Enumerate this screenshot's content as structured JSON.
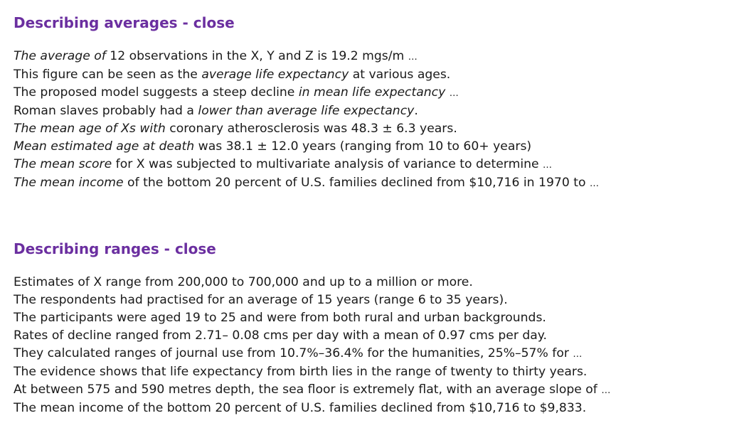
{
  "averages": {
    "heading": "Describing averages - close",
    "lines": [
      [
        {
          "t": "The average of",
          "i": true
        },
        {
          "t": " 12 observations in the X, Y and Z is 19.2 mgs/m "
        },
        {
          "t": "…",
          "e": true
        }
      ],
      [
        {
          "t": "This figure can be seen as the "
        },
        {
          "t": "average life expectancy",
          "i": true
        },
        {
          "t": " at various ages."
        }
      ],
      [
        {
          "t": "The proposed model suggests a steep decline "
        },
        {
          "t": "in mean life expectancy",
          "i": true
        },
        {
          "t": " "
        },
        {
          "t": "…",
          "e": true
        }
      ],
      [
        {
          "t": "Roman slaves probably had a "
        },
        {
          "t": "lower than average life expectancy",
          "i": true
        },
        {
          "t": "."
        }
      ],
      [
        {
          "t": "The mean age of Xs with",
          "i": true
        },
        {
          "t": " coronary atherosclerosis was 48.3 ± 6.3 years."
        }
      ],
      [
        {
          "t": "Mean estimated age at death",
          "i": true
        },
        {
          "t": " was 38.1 ± 12.0 years (ranging from 10 to 60+ years)"
        }
      ],
      [
        {
          "t": "The mean score",
          "i": true
        },
        {
          "t": " for X was subjected to multivariate analysis of variance to determine "
        },
        {
          "t": "…",
          "e": true
        }
      ],
      [
        {
          "t": "The mean income",
          "i": true
        },
        {
          "t": " of the bottom 20 percent of U.S. families declined from $10,716 in 1970 to "
        },
        {
          "t": "…",
          "e": true
        }
      ]
    ]
  },
  "ranges": {
    "heading": "Describing ranges - close",
    "lines": [
      [
        {
          "t": "Estimates of X range from 200,000 to 700,000 and up to a million or more."
        }
      ],
      [
        {
          "t": "The respondents had practised for an average of 15 years (range 6 to 35 years)."
        }
      ],
      [
        {
          "t": "The participants were aged 19 to 25 and were from both rural and urban backgrounds."
        }
      ],
      [
        {
          "t": "Rates of decline ranged from 2.71– 0.08 cms per day with a mean of 0.97 cms per day."
        }
      ],
      [
        {
          "t": "They calculated ranges of journal use from 10.7%–36.4% for the humanities, 25%–57% for "
        },
        {
          "t": "…",
          "e": true
        }
      ],
      [
        {
          "t": "The evidence shows that life expectancy from birth lies in the range of twenty to thirty years."
        }
      ],
      [
        {
          "t": "At between 575 and 590 metres depth, the sea floor is extremely flat, with an average slope of "
        },
        {
          "t": "…",
          "e": true
        }
      ],
      [
        {
          "t": "The mean income of the bottom 20 percent of U.S. families declined from $10,716 to $9,833."
        }
      ]
    ]
  }
}
